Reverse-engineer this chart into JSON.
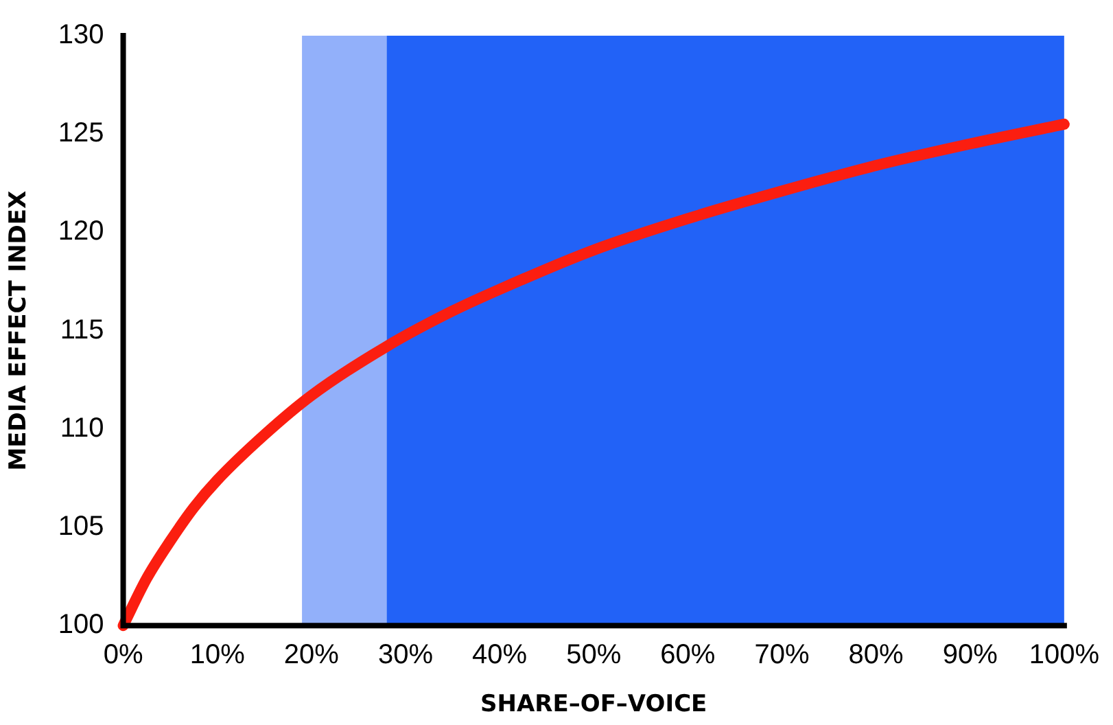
{
  "chart_data": {
    "type": "line",
    "xlabel": "SHARE–OF–VOICE",
    "ylabel": "MEDIA EFFECT INDEX",
    "x": [
      0,
      2.5,
      5,
      7.5,
      10,
      15,
      20,
      28,
      35,
      40,
      50,
      60,
      70,
      80,
      90,
      100
    ],
    "series": [
      {
        "color": "#fb1e10",
        "values": [
          100,
          102.4,
          104.3,
          106,
          107.4,
          109.7,
          111.7,
          114.2,
          116,
          117.1,
          119.1,
          120.7,
          122.1,
          123.4,
          124.5,
          125.5
        ]
      }
    ],
    "xlim": [
      0,
      100
    ],
    "ylim": [
      100,
      130
    ],
    "xticks": [
      {
        "value": 0,
        "label": "0%"
      },
      {
        "value": 10,
        "label": "10%"
      },
      {
        "value": 20,
        "label": "20%"
      },
      {
        "value": 30,
        "label": "30%"
      },
      {
        "value": 40,
        "label": "40%"
      },
      {
        "value": 50,
        "label": "50%"
      },
      {
        "value": 60,
        "label": "60%"
      },
      {
        "value": 70,
        "label": "70%"
      },
      {
        "value": 80,
        "label": "80%"
      },
      {
        "value": 90,
        "label": "90%"
      },
      {
        "value": 100,
        "label": "100%"
      }
    ],
    "yticks": [
      100,
      105,
      110,
      115,
      120,
      125,
      130
    ],
    "bands": [
      {
        "axis": "x",
        "from": 19,
        "to": 28,
        "color": "#92b0fa"
      },
      {
        "axis": "x",
        "from": 28,
        "to": 100,
        "color": "#2262f7"
      }
    ],
    "grid": false,
    "legend": false,
    "marker": "none",
    "line_style": "solid"
  }
}
